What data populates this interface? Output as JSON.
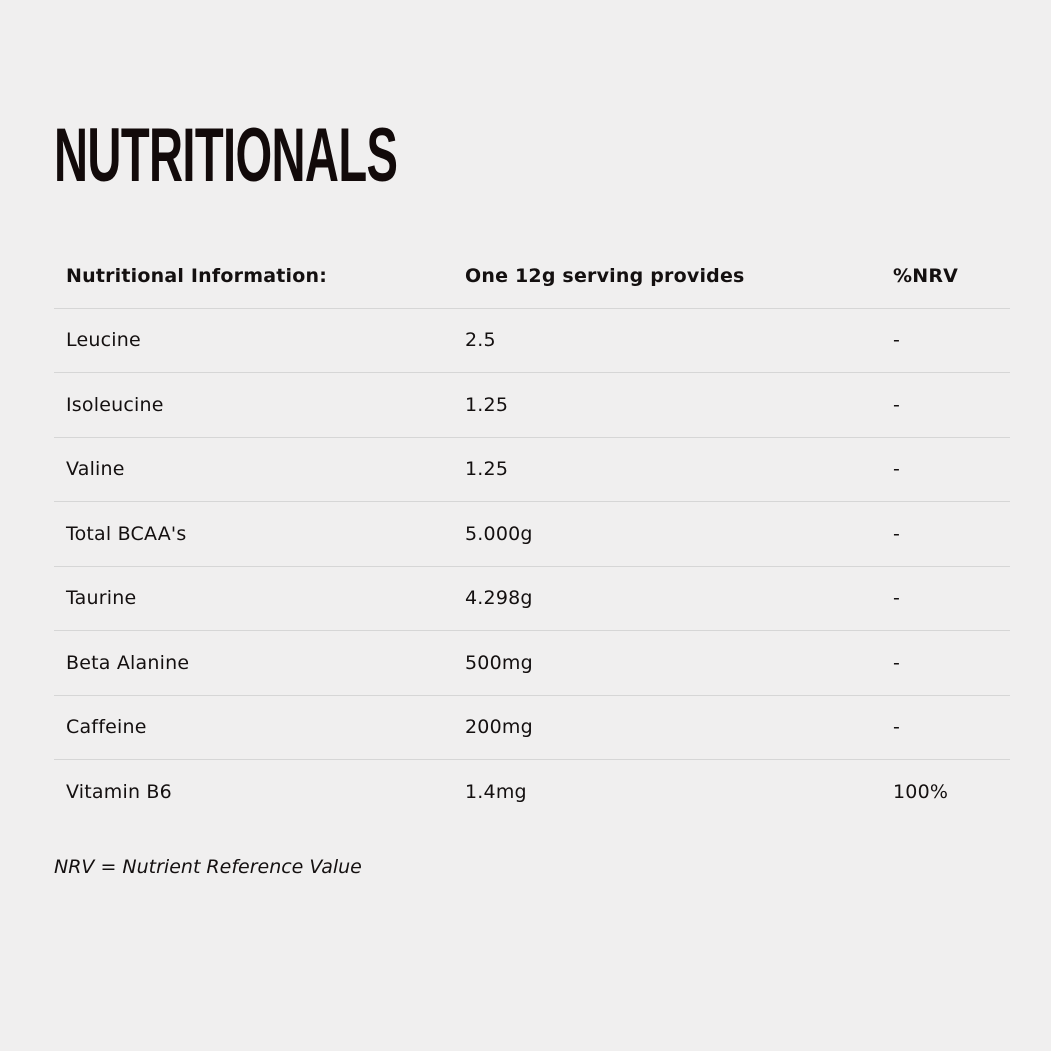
{
  "title": "NUTRITIONALS",
  "table": {
    "headers": [
      "Nutritional Information:",
      "One 12g serving provides",
      "%NRV"
    ],
    "rows": [
      [
        "Leucine",
        "2.5",
        "-"
      ],
      [
        "Isoleucine",
        "1.25",
        "-"
      ],
      [
        "Valine",
        "1.25",
        "-"
      ],
      [
        "Total BCAA's",
        "5.000g",
        "-"
      ],
      [
        "Taurine",
        "4.298g",
        "-"
      ],
      [
        "Beta Alanine",
        "500mg",
        "-"
      ],
      [
        "Caffeine",
        "200mg",
        "-"
      ],
      [
        "Vitamin B6",
        "1.4mg",
        "100%"
      ]
    ]
  },
  "footnote": "NRV = Nutrient Reference Value"
}
